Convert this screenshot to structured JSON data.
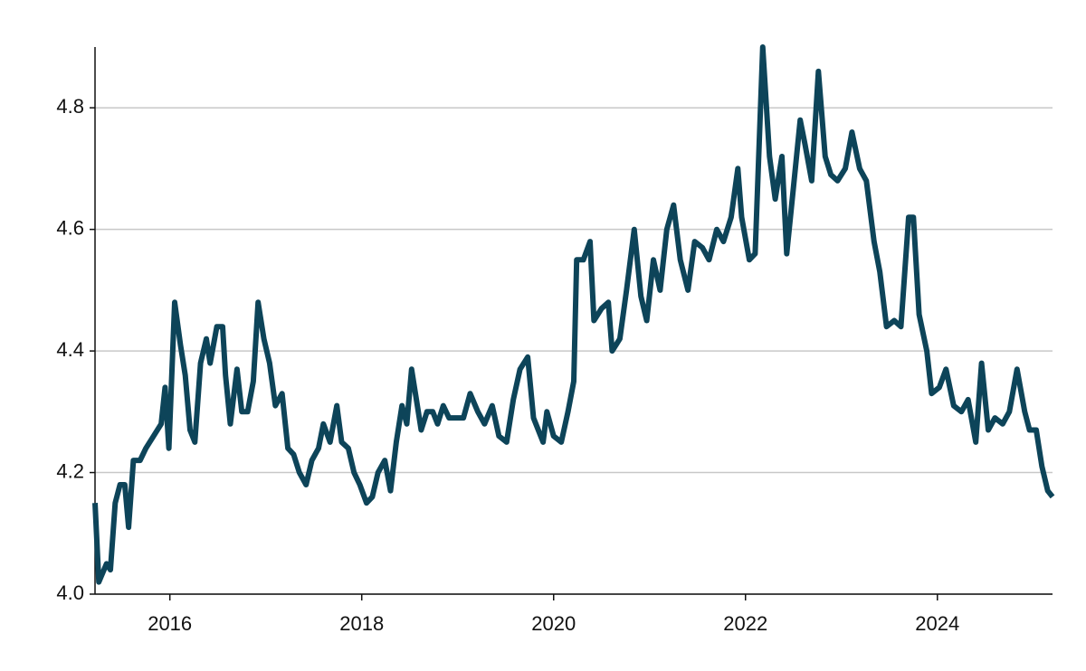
{
  "chart_data": {
    "type": "line",
    "x": [
      2015.22,
      2015.26,
      2015.34,
      2015.38,
      2015.43,
      2015.48,
      2015.53,
      2015.57,
      2015.62,
      2015.69,
      2015.75,
      2015.83,
      2015.91,
      2015.95,
      2015.99,
      2016.05,
      2016.11,
      2016.16,
      2016.21,
      2016.26,
      2016.32,
      2016.38,
      2016.42,
      2016.49,
      2016.55,
      2016.58,
      2016.63,
      2016.7,
      2016.75,
      2016.81,
      2016.87,
      2016.92,
      2016.98,
      2017.04,
      2017.1,
      2017.17,
      2017.23,
      2017.29,
      2017.35,
      2017.42,
      2017.48,
      2017.55,
      2017.6,
      2017.67,
      2017.74,
      2017.79,
      2017.86,
      2017.92,
      2017.98,
      2018.05,
      2018.11,
      2018.17,
      2018.24,
      2018.3,
      2018.36,
      2018.42,
      2018.47,
      2018.52,
      2018.57,
      2018.62,
      2018.68,
      2018.74,
      2018.79,
      2018.85,
      2018.91,
      2018.98,
      2019.06,
      2019.13,
      2019.21,
      2019.28,
      2019.36,
      2019.43,
      2019.51,
      2019.58,
      2019.65,
      2019.73,
      2019.79,
      2019.89,
      2019.93,
      2020.0,
      2020.08,
      2020.15,
      2020.21,
      2020.24,
      2020.31,
      2020.38,
      2020.42,
      2020.5,
      2020.57,
      2020.61,
      2020.69,
      2020.76,
      2020.84,
      2020.91,
      2020.97,
      2021.04,
      2021.11,
      2021.18,
      2021.25,
      2021.32,
      2021.4,
      2021.47,
      2021.55,
      2021.62,
      2021.7,
      2021.77,
      2021.85,
      2021.92,
      2021.96,
      2022.04,
      2022.1,
      2022.18,
      2022.25,
      2022.31,
      2022.38,
      2022.43,
      2022.5,
      2022.57,
      2022.62,
      2022.69,
      2022.76,
      2022.83,
      2022.89,
      2022.96,
      2023.04,
      2023.11,
      2023.19,
      2023.26,
      2023.34,
      2023.4,
      2023.47,
      2023.55,
      2023.62,
      2023.7,
      2023.75,
      2023.81,
      2023.89,
      2023.94,
      2024.02,
      2024.09,
      2024.17,
      2024.25,
      2024.32,
      2024.4,
      2024.46,
      2024.53,
      2024.6,
      2024.68,
      2024.75,
      2024.83,
      2024.91,
      2024.96,
      2025.03,
      2025.09,
      2025.15,
      2025.2
    ],
    "series": [
      {
        "color": "#0d4459",
        "values": [
          4.15,
          4.02,
          4.05,
          4.04,
          4.15,
          4.18,
          4.18,
          4.11,
          4.22,
          4.22,
          4.24,
          4.26,
          4.28,
          4.34,
          4.24,
          4.48,
          4.41,
          4.36,
          4.27,
          4.25,
          4.38,
          4.42,
          4.38,
          4.44,
          4.44,
          4.36,
          4.28,
          4.37,
          4.3,
          4.3,
          4.35,
          4.48,
          4.42,
          4.38,
          4.31,
          4.33,
          4.24,
          4.23,
          4.2,
          4.18,
          4.22,
          4.24,
          4.28,
          4.25,
          4.31,
          4.25,
          4.24,
          4.2,
          4.18,
          4.15,
          4.16,
          4.2,
          4.22,
          4.17,
          4.25,
          4.31,
          4.28,
          4.37,
          4.32,
          4.27,
          4.3,
          4.3,
          4.28,
          4.31,
          4.29,
          4.29,
          4.29,
          4.33,
          4.3,
          4.28,
          4.31,
          4.26,
          4.25,
          4.32,
          4.37,
          4.39,
          4.29,
          4.25,
          4.3,
          4.26,
          4.25,
          4.3,
          4.35,
          4.55,
          4.55,
          4.58,
          4.45,
          4.47,
          4.48,
          4.4,
          4.42,
          4.5,
          4.6,
          4.49,
          4.45,
          4.55,
          4.5,
          4.6,
          4.64,
          4.55,
          4.5,
          4.58,
          4.57,
          4.55,
          4.6,
          4.58,
          4.62,
          4.7,
          4.62,
          4.55,
          4.56,
          4.9,
          4.72,
          4.65,
          4.72,
          4.56,
          4.67,
          4.78,
          4.74,
          4.68,
          4.86,
          4.72,
          4.69,
          4.68,
          4.7,
          4.76,
          4.7,
          4.68,
          4.58,
          4.53,
          4.44,
          4.45,
          4.44,
          4.62,
          4.62,
          4.46,
          4.4,
          4.33,
          4.34,
          4.37,
          4.31,
          4.3,
          4.32,
          4.25,
          4.38,
          4.27,
          4.29,
          4.28,
          4.3,
          4.37,
          4.3,
          4.27,
          4.27,
          4.21,
          4.17,
          4.16
        ]
      }
    ],
    "xlim": [
      2015.22,
      2025.2
    ],
    "ylim": [
      4.0,
      4.9
    ],
    "xticks": [
      2016,
      2018,
      2020,
      2022,
      2024
    ],
    "yticks": [
      {
        "value": 4.0,
        "label": "4.0"
      },
      4.2,
      4.4,
      4.6,
      4.8
    ],
    "grid": true
  }
}
